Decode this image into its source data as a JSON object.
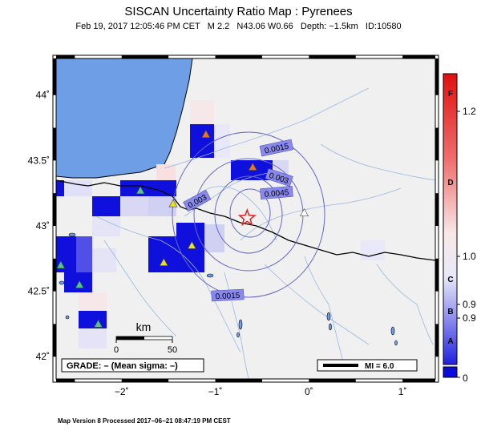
{
  "title": "SISCAN Uncertainty Ratio Map : Pyrenees",
  "subtitle": {
    "datetime": "Feb 19, 2017 12:05:46 PM CET",
    "magnitude": "M 2.2",
    "location": "N43.06 W0.66",
    "depth": "Depth: −1.5km",
    "id": "ID:10580"
  },
  "footer": "Map Version 8 Processed 2017−06−21 08:47:19 PM CEST",
  "axes": {
    "lon_ticks": [
      {
        "value": -2,
        "label": "−2˚"
      },
      {
        "value": -1,
        "label": "−1˚"
      },
      {
        "value": 0,
        "label": "0˚"
      },
      {
        "value": 1,
        "label": "1˚"
      }
    ],
    "lat_ticks": [
      {
        "value": 44,
        "label": "44˚"
      },
      {
        "value": 43.5,
        "label": "43.5˚"
      },
      {
        "value": 43,
        "label": "43˚"
      },
      {
        "value": 42.5,
        "label": "42.5˚"
      },
      {
        "value": 42,
        "label": "42˚"
      }
    ],
    "lon_range": [
      -2.7,
      1.35
    ],
    "lat_range": [
      41.83,
      44.28
    ]
  },
  "epicenter": {
    "lon": -0.66,
    "lat": 43.06,
    "symbol": "star-icon"
  },
  "contours": [
    {
      "label": "0.0015"
    },
    {
      "label": "0.003"
    },
    {
      "label": "0.0045"
    },
    {
      "label": "0.003"
    },
    {
      "label": "0.0015"
    }
  ],
  "stations": [
    {
      "lon": -1.1,
      "lat": 43.7,
      "color": "#e8761c"
    },
    {
      "lon": -0.6,
      "lat": 43.45,
      "color": "#e8761c"
    },
    {
      "lon": -1.8,
      "lat": 43.27,
      "color": "#4fc98a"
    },
    {
      "lon": -1.45,
      "lat": 43.17,
      "color": "#e8e020"
    },
    {
      "lon": -1.25,
      "lat": 42.85,
      "color": "#e8e020"
    },
    {
      "lon": -1.55,
      "lat": 42.72,
      "color": "#e8e020"
    },
    {
      "lon": -2.65,
      "lat": 42.7,
      "color": "#4fc98a"
    },
    {
      "lon": -2.45,
      "lat": 42.55,
      "color": "#4fc98a"
    },
    {
      "lon": -2.25,
      "lat": 42.25,
      "color": "#4fc98a"
    },
    {
      "lon": -0.05,
      "lat": 43.1,
      "color": "#ffffff"
    }
  ],
  "scalebar": {
    "unit": "km",
    "min_label": "0",
    "max_label": "50"
  },
  "grade_box": "GRADE: – (Mean sigma: –)",
  "mi_box": "MI = 6.0",
  "colorbar": {
    "letters": [
      "F",
      "D",
      "C",
      "B",
      "A"
    ],
    "values": [
      "1.2",
      "1.0",
      "0.9",
      "0.9",
      "0"
    ],
    "top_color": "#e01010",
    "bottom_color": "#0a0adc"
  },
  "colors": {
    "water": "#6e9ee6",
    "land": "#f0f0f0",
    "contour": "#6666cc",
    "river": "#9ab8e0",
    "border": "#000000"
  }
}
